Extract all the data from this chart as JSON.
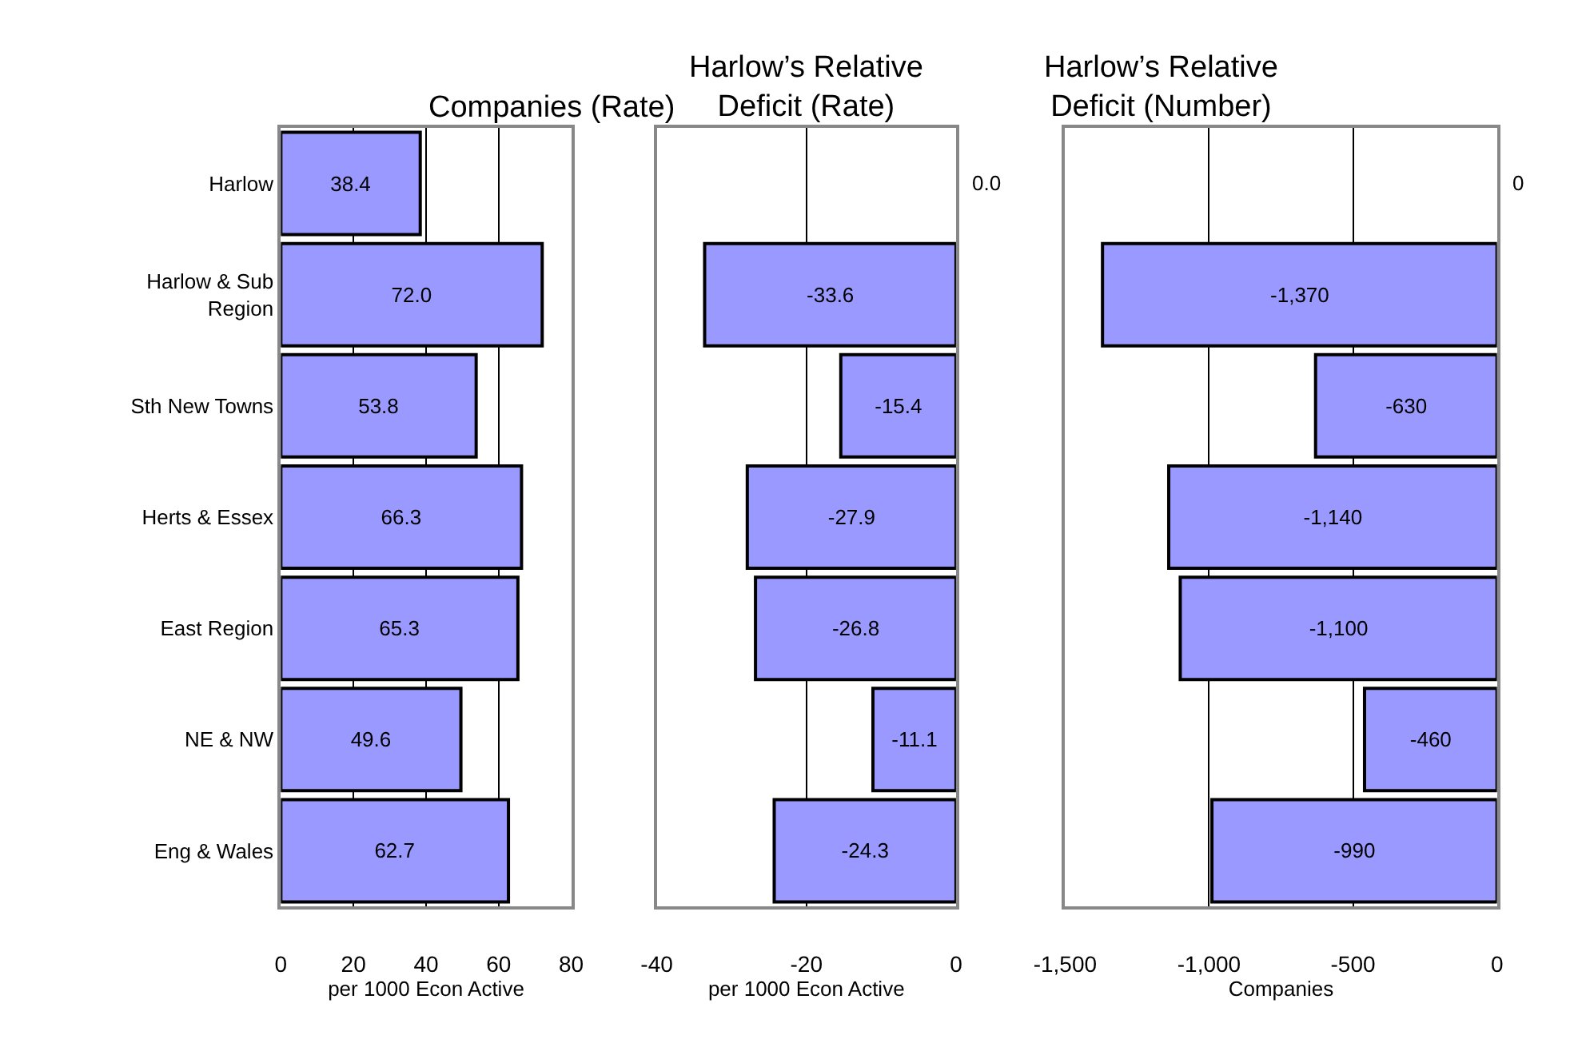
{
  "chart_data": [
    {
      "type": "bar",
      "orientation": "horizontal",
      "title": "Companies (Rate)",
      "xlabel": "per 1000 Econ Active",
      "categories": [
        "Harlow",
        "Harlow & Sub Region",
        "Sth New Towns",
        "Herts & Essex",
        "East Region",
        "NE & NW",
        "Eng & Wales"
      ],
      "values": [
        38.4,
        72.0,
        53.8,
        66.3,
        65.3,
        49.6,
        62.7
      ],
      "value_labels": [
        "38.4",
        "72.0",
        "53.8",
        "66.3",
        "65.3",
        "49.6",
        "62.7"
      ],
      "color": "#9999ff",
      "xlim": [
        0,
        80
      ],
      "xticks": [
        0,
        20,
        40,
        60,
        80
      ],
      "grid": "x"
    },
    {
      "type": "bar",
      "orientation": "horizontal",
      "title": "Harlow’s Relative Deficit (Rate)",
      "xlabel": "per 1000 Econ Active",
      "categories": [
        null,
        null,
        null,
        null,
        null,
        null,
        null
      ],
      "values": [
        0.0,
        -33.6,
        -15.4,
        -27.9,
        -26.8,
        -11.1,
        -24.3
      ],
      "value_labels": [
        "0.0",
        "-33.6",
        "-15.4",
        "-27.9",
        "-26.8",
        "-11.1",
        "-24.3"
      ],
      "color": "#9999ff",
      "xlim": [
        -40,
        0
      ],
      "xticks": [
        -40,
        -20,
        0
      ],
      "grid": "x",
      "tick_labels": "x"
    },
    {
      "type": "bar",
      "orientation": "horizontal",
      "title": "Harlow’s Relative Deficit (Number)",
      "xlabel": "Companies",
      "categories": [
        null,
        null,
        null,
        null,
        null,
        null,
        null
      ],
      "values": [
        0,
        -1370,
        -630,
        -1140,
        -1100,
        -460,
        -990
      ],
      "value_labels": [
        "0",
        "-1,370",
        "-630",
        "-1,140",
        "-1,100",
        "-460",
        "-990"
      ],
      "color": "#9999ff",
      "xlim": [
        -1500,
        0
      ],
      "xticks": [
        {
          "value": -1500,
          "label": "-1,500"
        },
        {
          "value": -1000,
          "label": "-1,000"
        },
        -500,
        0
      ],
      "grid": "x",
      "tick_labels": "x"
    }
  ]
}
